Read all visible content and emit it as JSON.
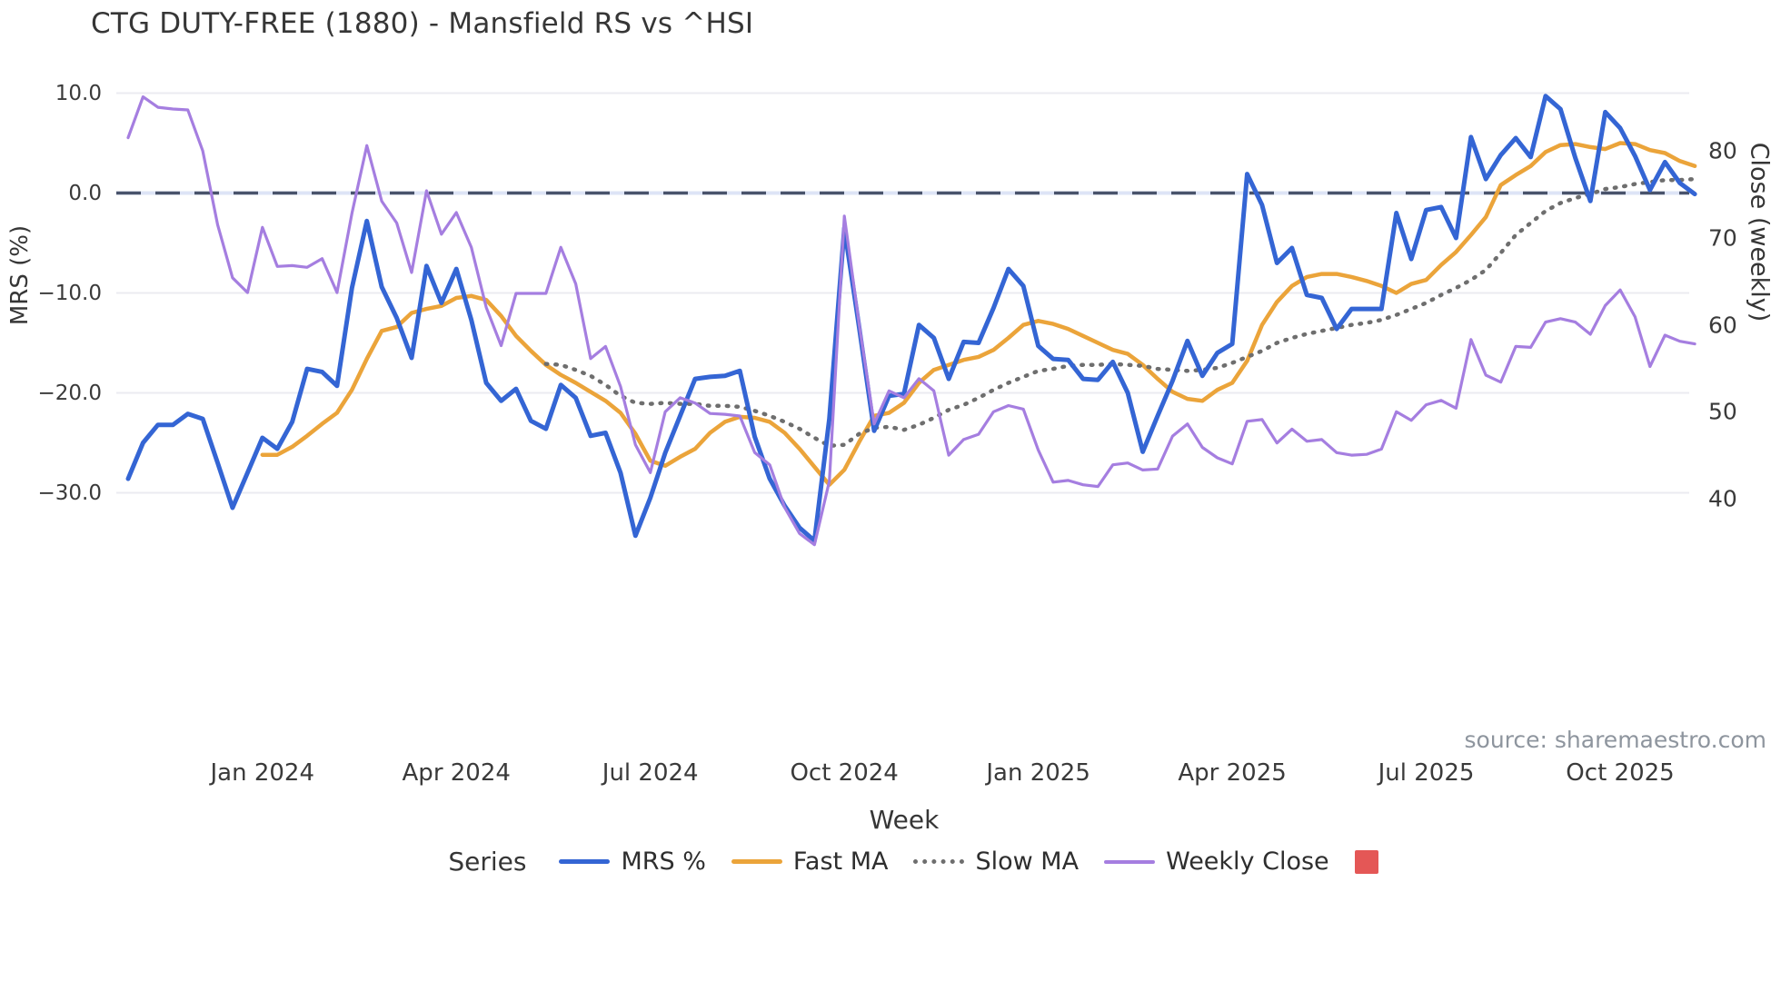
{
  "chart": {
    "title": "CTG DUTY-FREE (1880) - Mansfield RS vs ^HSI",
    "xlabel": "Week",
    "ylabel_left": "MRS (%)",
    "ylabel_right": "Close (weekly)",
    "legend_title": "Series",
    "source": "source: sharemaestro.com"
  },
  "chart_data": {
    "type": "line",
    "title": "CTG DUTY-FREE (1880) - Mansfield RS vs ^HSI",
    "xlabel": "Week",
    "n_weeks": 106,
    "x_start_week": "2023-10-30",
    "x_tick_labels": [
      "Jan 2024",
      "Apr 2024",
      "Jul 2024",
      "Oct 2024",
      "Jan 2025",
      "Apr 2025",
      "Jul 2025",
      "Oct 2025"
    ],
    "x_tick_indices": [
      9,
      22,
      35,
      48,
      61,
      74,
      87,
      100
    ],
    "y_left": {
      "label": "MRS (%)",
      "ticks": [
        10.0,
        0.0,
        -10.0,
        -20.0,
        -30.0
      ],
      "tick_labels": [
        "10.0",
        "0.0",
        "−10.0",
        "−20.0",
        "−30.0"
      ]
    },
    "y_right": {
      "label": "Close (weekly)",
      "ticks": [
        80,
        70,
        60,
        50,
        40
      ],
      "tick_labels": [
        "80",
        "70",
        "60",
        "50",
        "40"
      ]
    },
    "zero_dashed_line": 0.0,
    "grid": true,
    "legend_position": "bottom",
    "series": [
      {
        "name": "MRS %",
        "axis": "left",
        "style": "solid",
        "color": "#3465d4",
        "width": 5,
        "values": [
          -28.6,
          -25.0,
          -23.2,
          -23.2,
          -22.1,
          -22.6,
          -27.0,
          -31.5,
          -28.0,
          -24.5,
          -25.6,
          -22.9,
          -17.6,
          -17.9,
          -19.3,
          -9.5,
          -2.8,
          -9.4,
          -12.5,
          -16.5,
          -7.3,
          -11.0,
          -7.6,
          -12.7,
          -19.0,
          -20.8,
          -19.6,
          -22.8,
          -23.6,
          -19.2,
          -20.5,
          -24.3,
          -24.0,
          -28.0,
          -34.3,
          -30.5,
          -26.0,
          -22.3,
          -18.6,
          -18.4,
          -18.3,
          -17.8,
          -24.4,
          -28.6,
          -31.3,
          -33.5,
          -34.8,
          -22.6,
          -3.5,
          -13.5,
          -23.8,
          -20.3,
          -20.1,
          -13.2,
          -14.5,
          -18.6,
          -14.9,
          -15.0,
          -11.5,
          -7.6,
          -9.3,
          -15.3,
          -16.6,
          -16.7,
          -18.6,
          -18.7,
          -16.9,
          -20.0,
          -25.9,
          -22.3,
          -18.8,
          -14.8,
          -18.3,
          -16.0,
          -15.1,
          1.9,
          -1.2,
          -7.0,
          -5.5,
          -10.2,
          -10.5,
          -13.6,
          -11.6,
          -11.6,
          -11.6,
          -2.0,
          -6.6,
          -1.7,
          -1.4,
          -4.5,
          5.6,
          1.4,
          3.8,
          5.5,
          3.6,
          9.7,
          8.4,
          3.5,
          -0.8,
          8.1,
          6.5,
          3.7,
          0.3,
          3.1,
          1.0,
          -0.1
        ]
      },
      {
        "name": "Fast MA",
        "axis": "left",
        "style": "solid",
        "color": "#eba43a",
        "width": 4.5,
        "values": [
          null,
          null,
          null,
          null,
          null,
          null,
          null,
          null,
          null,
          -26.2,
          -26.2,
          -25.4,
          -24.3,
          -23.1,
          -22.0,
          -19.7,
          -16.6,
          -13.8,
          -13.4,
          -12.0,
          -11.6,
          -11.3,
          -10.5,
          -10.3,
          -10.7,
          -12.3,
          -14.3,
          -15.8,
          -17.2,
          -18.2,
          -19.0,
          -19.9,
          -20.8,
          -22.0,
          -24.1,
          -26.8,
          -27.3,
          -26.4,
          -25.6,
          -24.0,
          -22.9,
          -22.4,
          -22.5,
          -22.9,
          -24.0,
          -25.6,
          -27.4,
          -29.2,
          -27.7,
          -24.9,
          -22.3,
          -22.0,
          -21.0,
          -19.0,
          -17.7,
          -17.2,
          -16.7,
          -16.4,
          -15.7,
          -14.5,
          -13.2,
          -12.8,
          -13.1,
          -13.6,
          -14.3,
          -15.0,
          -15.7,
          -16.1,
          -17.2,
          -18.6,
          -19.9,
          -20.6,
          -20.8,
          -19.7,
          -19.0,
          -16.8,
          -13.2,
          -10.9,
          -9.3,
          -8.4,
          -8.1,
          -8.1,
          -8.4,
          -8.8,
          -9.3,
          -10.0,
          -9.1,
          -8.7,
          -7.2,
          -5.9,
          -4.2,
          -2.4,
          0.8,
          1.8,
          2.7,
          4.1,
          4.8,
          4.9,
          4.6,
          4.4,
          5.0,
          4.9,
          4.3,
          4.0,
          3.2,
          2.7
        ]
      },
      {
        "name": "Slow MA",
        "axis": "left",
        "style": "dotted",
        "color": "#6e6e6e",
        "width": 4,
        "values": [
          null,
          null,
          null,
          null,
          null,
          null,
          null,
          null,
          null,
          null,
          null,
          null,
          null,
          null,
          null,
          null,
          null,
          null,
          null,
          null,
          null,
          null,
          null,
          null,
          null,
          null,
          null,
          null,
          -17.1,
          -17.2,
          -17.7,
          -18.3,
          -19.2,
          -20.3,
          -21.0,
          -21.1,
          -21.0,
          -21.1,
          -21.1,
          -21.3,
          -21.3,
          -21.4,
          -21.8,
          -22.3,
          -22.9,
          -23.6,
          -24.5,
          -25.3,
          -25.2,
          -24.1,
          -23.5,
          -23.4,
          -23.7,
          -23.2,
          -22.5,
          -21.7,
          -21.2,
          -20.5,
          -19.7,
          -19.0,
          -18.4,
          -17.8,
          -17.6,
          -17.3,
          -17.2,
          -17.2,
          -17.1,
          -17.2,
          -17.3,
          -17.6,
          -17.7,
          -17.8,
          -17.7,
          -17.5,
          -17.0,
          -16.4,
          -15.8,
          -15.0,
          -14.5,
          -14.1,
          -13.8,
          -13.5,
          -13.2,
          -13.0,
          -12.7,
          -12.2,
          -11.6,
          -11.0,
          -10.2,
          -9.5,
          -8.7,
          -7.7,
          -6.0,
          -4.2,
          -3.0,
          -1.8,
          -1.0,
          -0.5,
          -0.1,
          0.4,
          0.6,
          0.9,
          1.1,
          1.3,
          1.3,
          1.4
        ]
      },
      {
        "name": "Weekly Close",
        "axis": "right",
        "style": "solid",
        "color": "#a57ee0",
        "width": 3.2,
        "values": [
          81.5,
          86.2,
          85.0,
          84.8,
          84.7,
          80.0,
          71.5,
          65.4,
          63.7,
          71.2,
          66.7,
          66.8,
          66.6,
          67.6,
          63.7,
          72.8,
          80.6,
          74.2,
          71.7,
          66.0,
          75.4,
          70.4,
          72.9,
          68.9,
          62.0,
          57.6,
          63.6,
          63.6,
          63.6,
          68.9,
          64.7,
          56.1,
          57.5,
          52.9,
          46.2,
          43.0,
          50.0,
          51.6,
          51.0,
          49.8,
          49.7,
          49.5,
          45.3,
          43.9,
          39.0,
          36.0,
          34.7,
          42.0,
          72.5,
          60.0,
          48.6,
          52.4,
          51.6,
          53.8,
          52.4,
          45.0,
          46.8,
          47.4,
          50.0,
          50.7,
          50.3,
          45.6,
          41.9,
          42.1,
          41.6,
          41.4,
          43.9,
          44.1,
          43.3,
          43.4,
          47.2,
          48.6,
          45.9,
          44.7,
          44.0,
          48.9,
          49.1,
          46.4,
          48.0,
          46.6,
          46.8,
          45.3,
          45.0,
          45.1,
          45.7,
          50.0,
          49.0,
          50.8,
          51.3,
          50.4,
          58.3,
          54.2,
          53.4,
          57.5,
          57.4,
          60.3,
          60.7,
          60.3,
          58.9,
          62.2,
          64.0,
          60.9,
          55.2,
          58.8,
          58.1,
          57.8
        ]
      }
    ],
    "heatmap_strip": {
      "description": "weekly color band derived from MRS % sign/magnitude",
      "source_series": "MRS %",
      "negative_color": "#e44b4b",
      "positive_color": "#35c18d",
      "negative_full_scale": -33,
      "positive_full_scale": 12
    },
    "legend_swatch_color": "#e45756",
    "colors": {
      "mrs": "#3465d4",
      "fast_ma": "#eba43a",
      "slow_ma": "#6e6e6e",
      "weekly_close": "#a57ee0",
      "zero_line": "#49536b",
      "grid": "#ebebf1"
    }
  }
}
